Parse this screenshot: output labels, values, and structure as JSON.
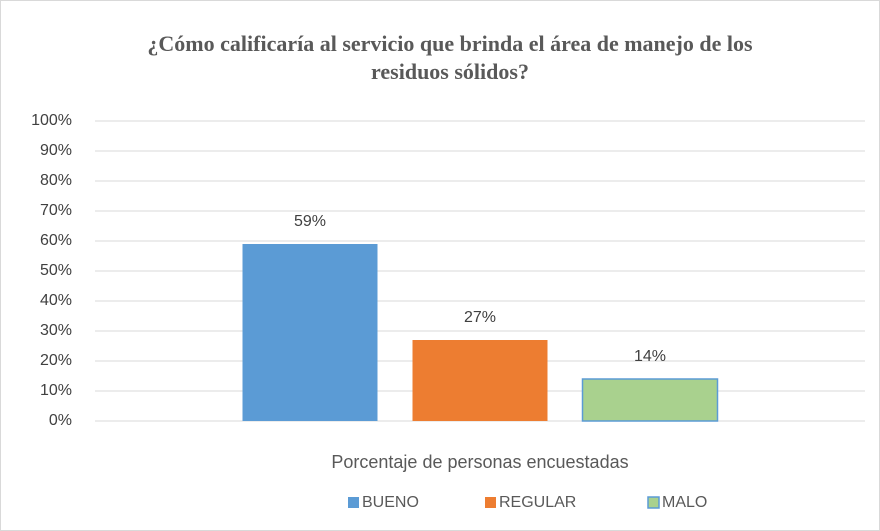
{
  "chart_data": {
    "type": "bar",
    "title": "¿Cómo calificaría al servicio que brinda el área de manejo de los residuos sólidos?",
    "categories": [
      "Porcentaje de personas encuestadas"
    ],
    "series": [
      {
        "name": "BUENO",
        "color": "#5b9bd5",
        "values": [
          59
        ],
        "value_labels": [
          "59%"
        ]
      },
      {
        "name": "REGULAR",
        "color": "#ed7d31",
        "values": [
          27
        ],
        "value_labels": [
          "27%"
        ]
      },
      {
        "name": "MALO",
        "color": "#a9d18e",
        "edgecolor": "#5b9bd5",
        "values": [
          14
        ],
        "value_labels": [
          "14%"
        ]
      }
    ],
    "ylim": [
      0,
      100
    ],
    "yticks": [
      {
        "value": 0,
        "label": "0%"
      },
      {
        "value": 10,
        "label": "10%"
      },
      {
        "value": 20,
        "label": "20%"
      },
      {
        "value": 30,
        "label": "30%"
      },
      {
        "value": 40,
        "label": "40%"
      },
      {
        "value": 50,
        "label": "50%"
      },
      {
        "value": 60,
        "label": "60%"
      },
      {
        "value": 70,
        "label": "70%"
      },
      {
        "value": 80,
        "label": "80%"
      },
      {
        "value": 90,
        "label": "90%"
      },
      {
        "value": 100,
        "label": "100%"
      }
    ],
    "grid": true,
    "legend": "bottom"
  }
}
